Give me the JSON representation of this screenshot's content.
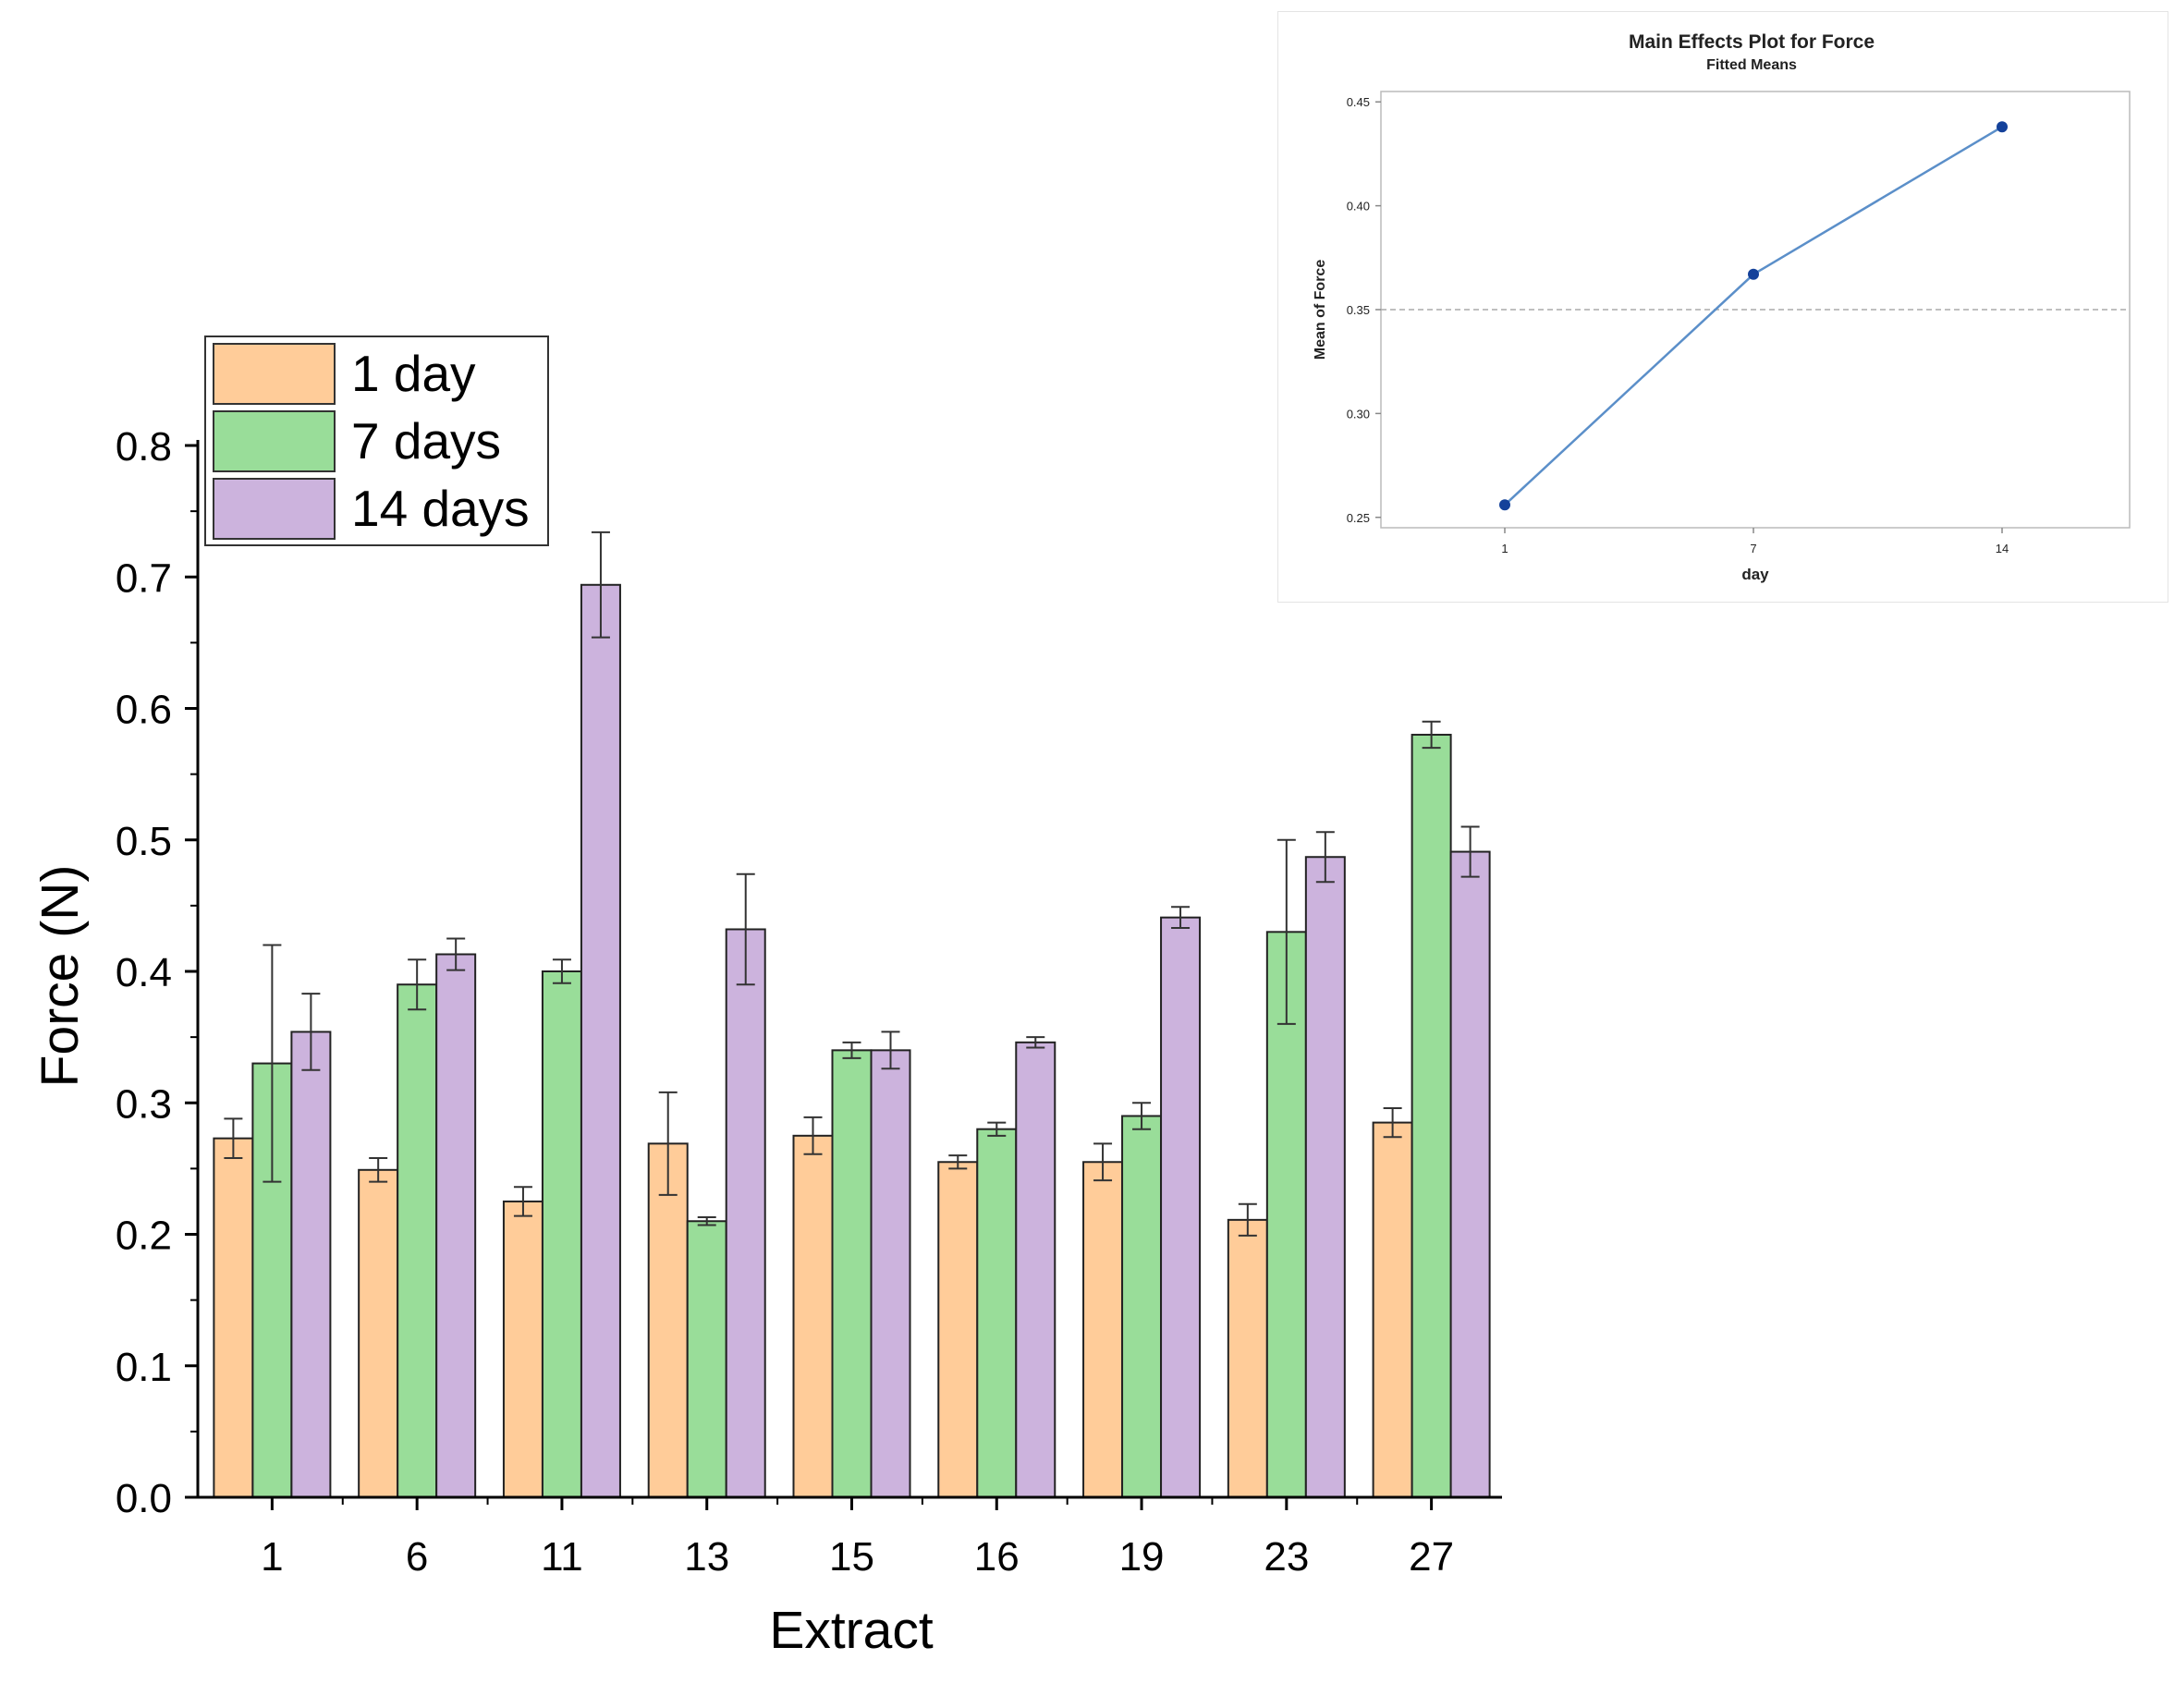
{
  "colors": {
    "day1": "#FFCC99",
    "day7": "#99DD99",
    "day14": "#CCB3DD",
    "axis": "#000000",
    "bar_border": "#222222",
    "inset_line": "#5b8fc9",
    "inset_point": "#14419a",
    "inset_ref": "#aaaaaa"
  },
  "chart_data": [
    {
      "type": "bar",
      "title": "",
      "xlabel": "Extract",
      "ylabel": "Force (N)",
      "ylim": [
        0,
        0.8
      ],
      "yticks": [
        0.0,
        0.1,
        0.2,
        0.3,
        0.4,
        0.5,
        0.6,
        0.7,
        0.8
      ],
      "ytick_labels": [
        "0.0",
        "0.1",
        "0.2",
        "0.3",
        "0.4",
        "0.5",
        "0.6",
        "0.7",
        "0.8"
      ],
      "categories": [
        "1",
        "6",
        "11",
        "13",
        "15",
        "16",
        "19",
        "23",
        "27"
      ],
      "legend_position": "top-left",
      "series": [
        {
          "name": "1 day",
          "values": [
            0.273,
            0.249,
            0.225,
            0.269,
            0.275,
            0.255,
            0.255,
            0.211,
            0.285
          ],
          "errors": [
            0.015,
            0.009,
            0.011,
            0.039,
            0.014,
            0.005,
            0.014,
            0.012,
            0.011
          ]
        },
        {
          "name": "7 days",
          "values": [
            0.33,
            0.39,
            0.4,
            0.21,
            0.34,
            0.28,
            0.29,
            0.43,
            0.58
          ],
          "errors": [
            0.09,
            0.019,
            0.009,
            0.003,
            0.006,
            0.005,
            0.01,
            0.07,
            0.01
          ]
        },
        {
          "name": "14 days",
          "values": [
            0.354,
            0.413,
            0.694,
            0.432,
            0.34,
            0.346,
            0.441,
            0.487,
            0.491
          ],
          "errors": [
            0.029,
            0.012,
            0.04,
            0.042,
            0.014,
            0.004,
            0.008,
            0.019,
            0.019
          ]
        }
      ]
    },
    {
      "type": "line",
      "title": "Main Effects Plot for Force",
      "subtitle": "Fitted Means",
      "xlabel": "day",
      "ylabel": "Mean of Force",
      "categories": [
        "1",
        "7",
        "14"
      ],
      "values": [
        0.256,
        0.367,
        0.438
      ],
      "ylim": [
        0.245,
        0.455
      ],
      "yticks": [
        0.25,
        0.3,
        0.35,
        0.4,
        0.45
      ],
      "ytick_labels": [
        "0.25",
        "0.30",
        "0.35",
        "0.40",
        "0.45"
      ],
      "reference_line": 0.35
    }
  ]
}
